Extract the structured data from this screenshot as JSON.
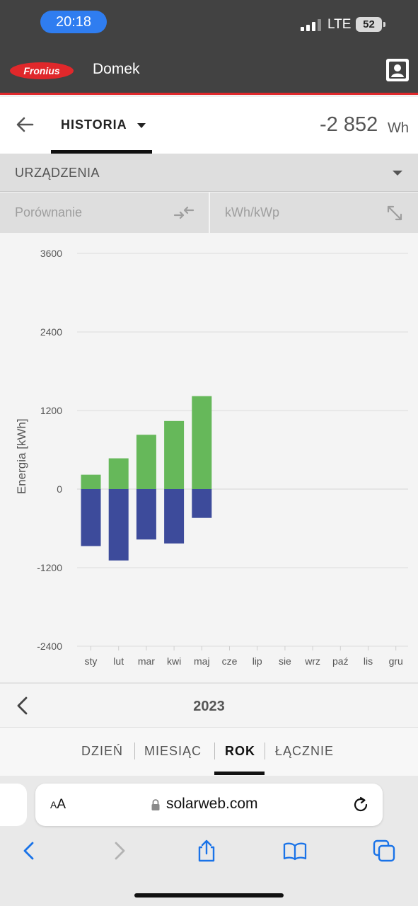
{
  "status_bar": {
    "time": "20:18",
    "network": "LTE",
    "battery": "52"
  },
  "header": {
    "logo_text": "Fronius",
    "site_name": "Domek",
    "profile_icon": "person-icon"
  },
  "history_bar": {
    "tab_label": "HISTORIA",
    "total_value": "-2 852",
    "total_unit": "Wh"
  },
  "devices": {
    "label": "URZĄDZENIA"
  },
  "compare": {
    "left_label": "Porównanie",
    "right_label": "kWh/kWp"
  },
  "chart_data": {
    "type": "bar",
    "stacked_diverging": true,
    "ylabel": "Energia [kWh]",
    "ylim": [
      -2400,
      3600
    ],
    "yticks": [
      3600,
      2400,
      1200,
      0,
      -1200,
      -2400
    ],
    "ytick_labels": [
      "3600",
      "2400",
      "1200",
      "0",
      "-1200",
      "-2400"
    ],
    "categories": [
      "sty",
      "lut",
      "mar",
      "kwi",
      "maj",
      "cze",
      "lip",
      "sie",
      "wrz",
      "paź",
      "lis",
      "gru"
    ],
    "series": [
      {
        "color": "#66b85a",
        "values": [
          220,
          470,
          830,
          1040,
          1420,
          null,
          null,
          null,
          null,
          null,
          null,
          null
        ]
      },
      {
        "color": "#3d4b9b",
        "values": [
          -870,
          -1090,
          -770,
          -830,
          -440,
          null,
          null,
          null,
          null,
          null,
          null,
          null
        ]
      }
    ],
    "grid": true
  },
  "year_nav": {
    "year": "2023"
  },
  "period_tabs": [
    {
      "label": "DZIEŃ",
      "active": false
    },
    {
      "label": "MIESIĄC",
      "active": false
    },
    {
      "label": "ROK",
      "active": true
    },
    {
      "label": "ŁĄCZNIE",
      "active": false
    }
  ],
  "browser": {
    "aa_small": "A",
    "aa_large": "A",
    "url": "solarweb.com"
  },
  "colors": {
    "accent_red": "#e0282b",
    "header_bg": "#424242",
    "production_green": "#66b85a",
    "consumption_blue": "#3d4b9b"
  }
}
